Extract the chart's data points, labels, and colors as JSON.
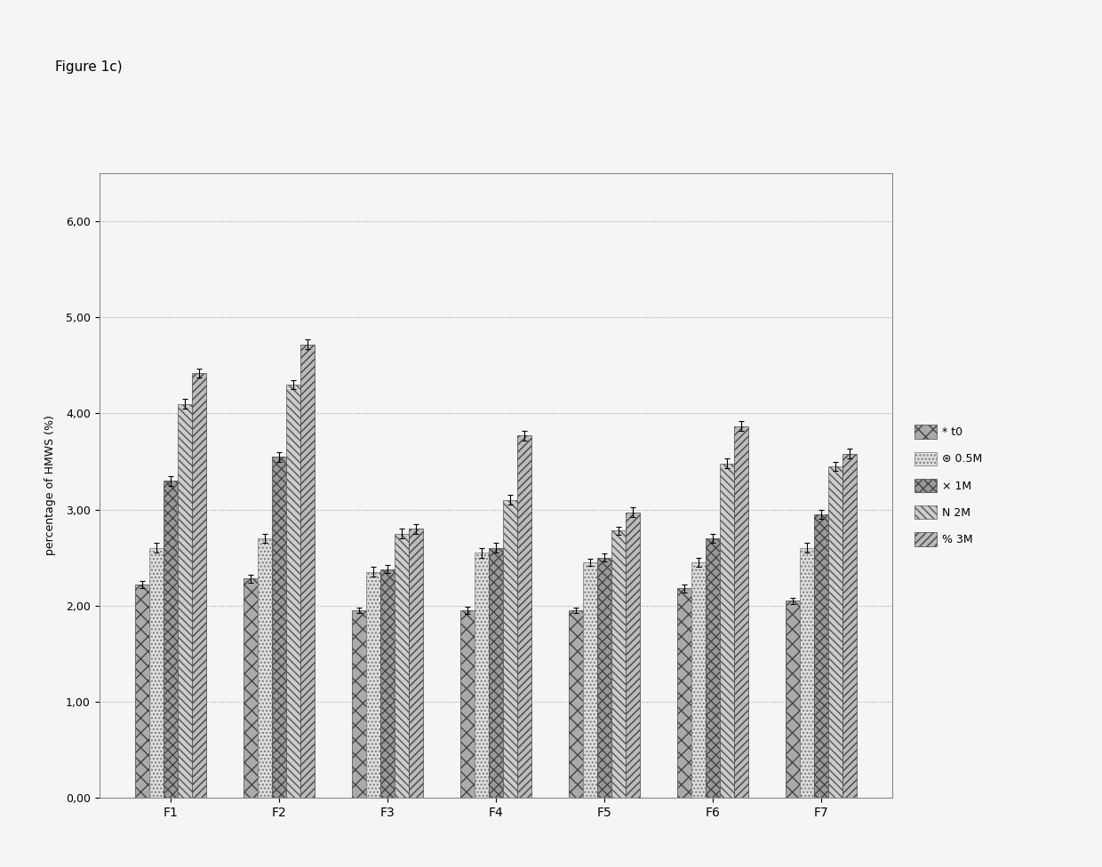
{
  "title": "Figure 1c)",
  "ylabel": "percentage of HMWS (%)",
  "categories": [
    "F1",
    "F2",
    "F3",
    "F4",
    "F5",
    "F6",
    "F7"
  ],
  "series_labels": [
    "t0",
    "0.5M",
    "1M",
    "2M",
    "3M"
  ],
  "values": {
    "t0": [
      2.22,
      2.28,
      1.95,
      1.95,
      1.95,
      2.18,
      2.05
    ],
    "0.5M": [
      2.6,
      2.7,
      2.35,
      2.55,
      2.45,
      2.45,
      2.6
    ],
    "1M": [
      3.3,
      3.55,
      2.38,
      2.6,
      2.5,
      2.7,
      2.95
    ],
    "2M": [
      4.1,
      4.3,
      2.75,
      3.1,
      2.78,
      3.48,
      3.45
    ],
    "3M": [
      4.42,
      4.72,
      2.8,
      3.77,
      2.97,
      3.87,
      3.58
    ]
  },
  "errors": {
    "t0": [
      0.04,
      0.04,
      0.03,
      0.04,
      0.03,
      0.04,
      0.03
    ],
    "0.5M": [
      0.05,
      0.05,
      0.05,
      0.05,
      0.04,
      0.05,
      0.05
    ],
    "1M": [
      0.05,
      0.05,
      0.04,
      0.05,
      0.04,
      0.05,
      0.05
    ],
    "2M": [
      0.05,
      0.05,
      0.05,
      0.05,
      0.04,
      0.05,
      0.05
    ],
    "3M": [
      0.05,
      0.05,
      0.05,
      0.05,
      0.05,
      0.05,
      0.05
    ]
  },
  "ylim": [
    0.0,
    6.5
  ],
  "yticks": [
    0.0,
    1.0,
    2.0,
    3.0,
    4.0,
    5.0,
    6.0
  ],
  "ytick_labels": [
    "0,00",
    "1,00",
    "2,00",
    "3,00",
    "4,00",
    "5,00",
    "6,00"
  ],
  "bar_width": 0.13,
  "hatch_patterns": [
    "xx",
    "....",
    "xxx",
    "\\\\\\\\",
    "////"
  ],
  "edge_colors": [
    "#444444",
    "#777777",
    "#444444",
    "#555555",
    "#444444"
  ],
  "face_colors": [
    "#aaaaaa",
    "#dddddd",
    "#999999",
    "#cccccc",
    "#bbbbbb"
  ],
  "background_color": "#f5f5f5",
  "plot_bg_color": "#f5f5f5",
  "grid_color": "#999999",
  "legend_labels": [
    "* t0",
    "⊛ 0.5M",
    "× 1M",
    "N 2M",
    "% 3M"
  ],
  "figure_title_fontsize": 11,
  "axis_label_fontsize": 9,
  "tick_fontsize": 9,
  "legend_fontsize": 9
}
